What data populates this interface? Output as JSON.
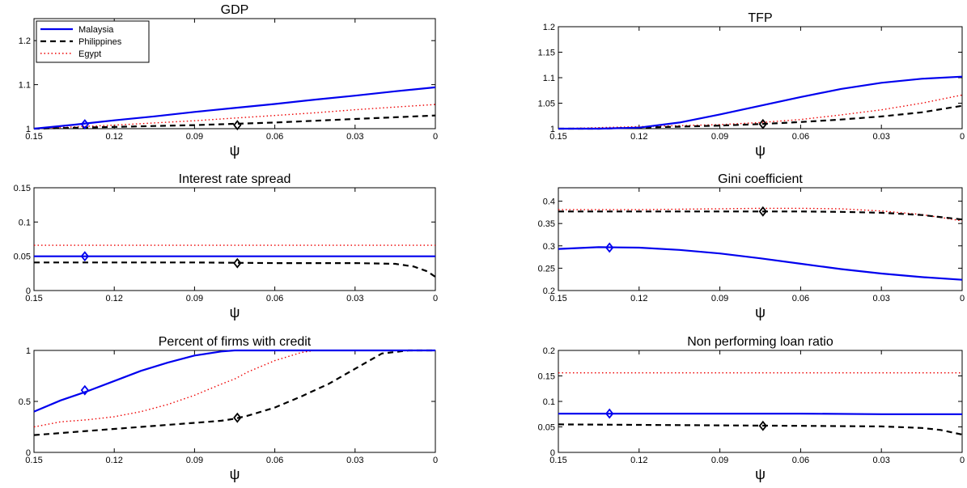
{
  "chart_data": [
    {
      "type": "line",
      "title": "GDP",
      "xlabel": "ψ",
      "xlim": [
        0.15,
        0
      ],
      "ylim": [
        1,
        1.25
      ],
      "xticks": [
        "0.15",
        "0.12",
        "0.09",
        "0.06",
        "0.03",
        "0"
      ],
      "yticks": [
        {
          "v": 1,
          "t": "1"
        },
        {
          "v": 1.1,
          "t": "1.1"
        },
        {
          "v": 1.2,
          "t": "1.2"
        }
      ],
      "legend": {
        "placement": "top-left",
        "entries": [
          "Malaysia",
          "Philippines",
          "Egypt"
        ]
      },
      "x": [
        0.15,
        0.135,
        0.12,
        0.105,
        0.09,
        0.075,
        0.06,
        0.045,
        0.03,
        0.015,
        0
      ],
      "series": [
        {
          "name": "Malaysia",
          "style": "solid",
          "color": "#0000ee",
          "values": [
            1.0,
            1.009,
            1.019,
            1.028,
            1.038,
            1.047,
            1.056,
            1.066,
            1.075,
            1.085,
            1.094
          ]
        },
        {
          "name": "Philippines",
          "style": "dashed",
          "color": "#000000",
          "values": [
            1.0,
            1.002,
            1.004,
            1.006,
            1.008,
            1.011,
            1.014,
            1.018,
            1.022,
            1.026,
            1.03
          ]
        },
        {
          "name": "Egypt",
          "style": "dotted",
          "color": "#ee0000",
          "values": [
            1.0,
            1.004,
            1.008,
            1.013,
            1.018,
            1.024,
            1.03,
            1.036,
            1.043,
            1.049,
            1.055
          ]
        }
      ],
      "markers": [
        {
          "series": "Malaysia",
          "x": 0.131,
          "y": 1.01
        },
        {
          "series": "Philippines",
          "x": 0.074,
          "y": 1.008
        }
      ]
    },
    {
      "type": "line",
      "title": "TFP",
      "xlabel": "ψ",
      "xlim": [
        0.15,
        0
      ],
      "ylim": [
        1,
        1.2
      ],
      "xticks": [
        "0.15",
        "0.12",
        "0.09",
        "0.06",
        "0.03",
        "0"
      ],
      "yticks": [
        {
          "v": 1,
          "t": "1"
        },
        {
          "v": 1.05,
          "t": "1.05"
        },
        {
          "v": 1.1,
          "t": "1.1"
        },
        {
          "v": 1.15,
          "t": "1.15"
        },
        {
          "v": 1.2,
          "t": "1.2"
        }
      ],
      "x": [
        0.15,
        0.135,
        0.12,
        0.105,
        0.09,
        0.075,
        0.06,
        0.045,
        0.03,
        0.015,
        0
      ],
      "series": [
        {
          "name": "Malaysia",
          "style": "solid",
          "color": "#0000ee",
          "values": [
            1.0,
            1.0,
            1.002,
            1.012,
            1.028,
            1.045,
            1.062,
            1.078,
            1.09,
            1.098,
            1.102
          ]
        },
        {
          "name": "Philippines",
          "style": "dashed",
          "color": "#000000",
          "values": [
            1.0,
            1.0,
            1.002,
            1.004,
            1.006,
            1.009,
            1.013,
            1.018,
            1.024,
            1.032,
            1.045
          ]
        },
        {
          "name": "Egypt",
          "style": "dotted",
          "color": "#ee0000",
          "values": [
            1.0,
            1.002,
            1.004,
            1.006,
            1.008,
            1.012,
            1.018,
            1.027,
            1.037,
            1.05,
            1.066
          ]
        }
      ],
      "markers": [
        {
          "series": "Philippines",
          "x": 0.074,
          "y": 1.009
        }
      ]
    },
    {
      "type": "line",
      "title": "Interest rate spread",
      "xlabel": "ψ",
      "xlim": [
        0.15,
        0
      ],
      "ylim": [
        0,
        0.15
      ],
      "xticks": [
        "0.15",
        "0.12",
        "0.09",
        "0.06",
        "0.03",
        "0"
      ],
      "yticks": [
        {
          "v": 0,
          "t": "0"
        },
        {
          "v": 0.05,
          "t": "0.05"
        },
        {
          "v": 0.1,
          "t": "0.1"
        },
        {
          "v": 0.15,
          "t": "0.15"
        }
      ],
      "x": [
        0.15,
        0.12,
        0.09,
        0.06,
        0.03,
        0.015,
        0.008,
        0.003,
        0
      ],
      "series": [
        {
          "name": "Malaysia",
          "style": "solid",
          "color": "#0000ee",
          "values": [
            0.05,
            0.05,
            0.05,
            0.05,
            0.05,
            0.05,
            0.05,
            0.05,
            0.05
          ]
        },
        {
          "name": "Philippines",
          "style": "dashed",
          "color": "#000000",
          "values": [
            0.041,
            0.041,
            0.041,
            0.04,
            0.04,
            0.039,
            0.035,
            0.028,
            0.02
          ]
        },
        {
          "name": "Egypt",
          "style": "dotted",
          "color": "#ee0000",
          "values": [
            0.066,
            0.066,
            0.066,
            0.066,
            0.066,
            0.066,
            0.066,
            0.066,
            0.066
          ]
        }
      ],
      "markers": [
        {
          "series": "Malaysia",
          "x": 0.131,
          "y": 0.05
        },
        {
          "series": "Philippines",
          "x": 0.074,
          "y": 0.04
        }
      ]
    },
    {
      "type": "line",
      "title": "Gini coefficient",
      "xlabel": "ψ",
      "xlim": [
        0.15,
        0
      ],
      "ylim": [
        0.2,
        0.43
      ],
      "xticks": [
        "0.15",
        "0.12",
        "0.09",
        "0.06",
        "0.03",
        "0"
      ],
      "yticks": [
        {
          "v": 0.2,
          "t": "0.2"
        },
        {
          "v": 0.25,
          "t": "0.25"
        },
        {
          "v": 0.3,
          "t": "0.3"
        },
        {
          "v": 0.35,
          "t": "0.35"
        },
        {
          "v": 0.4,
          "t": "0.4"
        }
      ],
      "x": [
        0.15,
        0.135,
        0.12,
        0.105,
        0.09,
        0.075,
        0.06,
        0.045,
        0.03,
        0.015,
        0
      ],
      "series": [
        {
          "name": "Malaysia",
          "style": "solid",
          "color": "#0000ee",
          "values": [
            0.293,
            0.297,
            0.296,
            0.291,
            0.283,
            0.272,
            0.26,
            0.248,
            0.238,
            0.23,
            0.224
          ]
        },
        {
          "name": "Philippines",
          "style": "dashed",
          "color": "#000000",
          "values": [
            0.377,
            0.377,
            0.377,
            0.377,
            0.377,
            0.377,
            0.377,
            0.376,
            0.374,
            0.369,
            0.359
          ]
        },
        {
          "name": "Egypt",
          "style": "dotted",
          "color": "#ee0000",
          "values": [
            0.381,
            0.381,
            0.381,
            0.382,
            0.383,
            0.384,
            0.384,
            0.383,
            0.378,
            0.37,
            0.356
          ]
        }
      ],
      "markers": [
        {
          "series": "Malaysia",
          "x": 0.131,
          "y": 0.296
        },
        {
          "series": "Philippines",
          "x": 0.074,
          "y": 0.377
        }
      ]
    },
    {
      "type": "line",
      "title": "Percent of firms with credit",
      "xlabel": "ψ",
      "xlim": [
        0.15,
        0
      ],
      "ylim": [
        0,
        1
      ],
      "xticks": [
        "0.15",
        "0.12",
        "0.09",
        "0.06",
        "0.03",
        "0"
      ],
      "yticks": [
        {
          "v": 0,
          "t": "0"
        },
        {
          "v": 0.5,
          "t": "0.5"
        },
        {
          "v": 1,
          "t": "1"
        }
      ],
      "x": [
        0.15,
        0.14,
        0.13,
        0.12,
        0.11,
        0.1,
        0.09,
        0.08,
        0.075,
        0.07,
        0.06,
        0.05,
        0.045,
        0.04,
        0.03,
        0.02,
        0.01,
        0
      ],
      "series": [
        {
          "name": "Malaysia",
          "style": "solid",
          "color": "#0000ee",
          "values": [
            0.4,
            0.51,
            0.6,
            0.7,
            0.8,
            0.88,
            0.95,
            0.99,
            1.0,
            1.0,
            1.0,
            1.0,
            1.0,
            1.0,
            1.0,
            1.0,
            1.0,
            1.0
          ]
        },
        {
          "name": "Philippines",
          "style": "dashed",
          "color": "#000000",
          "values": [
            0.17,
            0.19,
            0.21,
            0.23,
            0.25,
            0.27,
            0.29,
            0.31,
            0.33,
            0.36,
            0.44,
            0.55,
            0.61,
            0.67,
            0.82,
            0.97,
            1.0,
            1.0
          ]
        },
        {
          "name": "Egypt",
          "style": "dotted",
          "color": "#ee0000",
          "values": [
            0.25,
            0.3,
            0.32,
            0.35,
            0.4,
            0.47,
            0.56,
            0.67,
            0.72,
            0.79,
            0.9,
            0.98,
            1.0,
            1.0,
            1.0,
            1.0,
            1.0,
            1.0
          ]
        }
      ],
      "markers": [
        {
          "series": "Malaysia",
          "x": 0.131,
          "y": 0.61
        },
        {
          "series": "Philippines",
          "x": 0.074,
          "y": 0.34
        }
      ]
    },
    {
      "type": "line",
      "title": "Non performing loan ratio",
      "xlabel": "ψ",
      "xlim": [
        0.15,
        0
      ],
      "ylim": [
        0,
        0.2
      ],
      "xticks": [
        "0.15",
        "0.12",
        "0.09",
        "0.06",
        "0.03",
        "0"
      ],
      "yticks": [
        {
          "v": 0,
          "t": "0"
        },
        {
          "v": 0.05,
          "t": "0.05"
        },
        {
          "v": 0.1,
          "t": "0.1"
        },
        {
          "v": 0.15,
          "t": "0.15"
        },
        {
          "v": 0.2,
          "t": "0.2"
        }
      ],
      "x": [
        0.15,
        0.12,
        0.09,
        0.06,
        0.03,
        0.015,
        0.008,
        0
      ],
      "series": [
        {
          "name": "Malaysia",
          "style": "solid",
          "color": "#0000ee",
          "values": [
            0.076,
            0.076,
            0.076,
            0.076,
            0.075,
            0.075,
            0.075,
            0.075
          ]
        },
        {
          "name": "Philippines",
          "style": "dashed",
          "color": "#000000",
          "values": [
            0.055,
            0.054,
            0.053,
            0.052,
            0.051,
            0.048,
            0.044,
            0.035
          ]
        },
        {
          "name": "Egypt",
          "style": "dotted",
          "color": "#ee0000",
          "values": [
            0.156,
            0.156,
            0.156,
            0.156,
            0.156,
            0.156,
            0.156,
            0.156
          ]
        }
      ],
      "markers": [
        {
          "series": "Malaysia",
          "x": 0.131,
          "y": 0.076
        },
        {
          "series": "Philippines",
          "x": 0.074,
          "y": 0.052
        }
      ]
    }
  ]
}
